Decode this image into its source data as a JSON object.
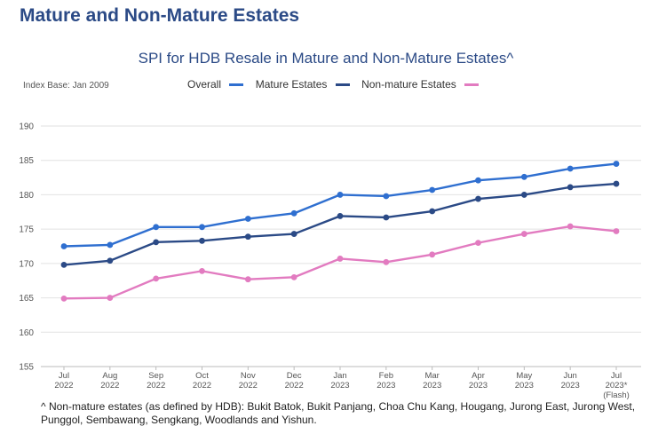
{
  "page": {
    "heading": "Mature and Non-Mature Estates",
    "index_base": "Index Base: Jan 2009",
    "footnote": "^ Non-mature estates (as defined by HDB): Bukit Batok, Bukit Panjang, Choa Chu Kang, Hougang, Jurong East, Jurong West, Punggol, Sembawang, Sengkang, Woodlands and Yishun."
  },
  "chart_data": {
    "type": "line",
    "title": "SPI for HDB Resale in Mature and Non-Mature Estates^",
    "xlabel": "",
    "ylabel": "",
    "ylim": [
      155,
      190
    ],
    "yticks": [
      155,
      160,
      165,
      170,
      175,
      180,
      185,
      190
    ],
    "grid": true,
    "legend_position": "top",
    "categories": [
      [
        "Jul",
        "2022"
      ],
      [
        "Aug",
        "2022"
      ],
      [
        "Sep",
        "2022"
      ],
      [
        "Oct",
        "2022"
      ],
      [
        "Nov",
        "2022"
      ],
      [
        "Dec",
        "2022"
      ],
      [
        "Jan",
        "2023"
      ],
      [
        "Feb",
        "2023"
      ],
      [
        "Mar",
        "2023"
      ],
      [
        "Apr",
        "2023"
      ],
      [
        "May",
        "2023"
      ],
      [
        "Jun",
        "2023"
      ],
      [
        "Jul",
        "2023*",
        "(Flash)"
      ]
    ],
    "series": [
      {
        "name": "Overall",
        "color": "#2f6fd0",
        "values": [
          172.5,
          172.7,
          175.3,
          175.3,
          176.5,
          177.3,
          180.0,
          179.8,
          180.7,
          182.1,
          182.6,
          183.8,
          184.5
        ]
      },
      {
        "name": "Mature Estates",
        "color": "#2b4a86",
        "values": [
          169.8,
          170.4,
          173.1,
          173.3,
          173.9,
          174.3,
          176.9,
          176.7,
          177.6,
          179.4,
          180.0,
          181.1,
          181.6
        ]
      },
      {
        "name": "Non-mature Estates",
        "color": "#e27bc0",
        "values": [
          164.9,
          165.0,
          167.8,
          168.9,
          167.7,
          168.0,
          170.7,
          170.2,
          171.3,
          173.0,
          174.3,
          175.4,
          174.7
        ]
      }
    ]
  }
}
